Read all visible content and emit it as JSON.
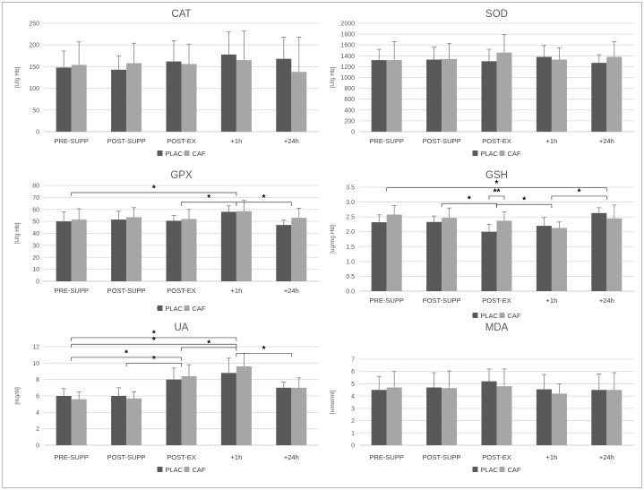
{
  "colors": {
    "PLAC": "#595959",
    "CAF": "#a6a6a6",
    "grid": "#d9d9d9",
    "axis": "#bfbfbf",
    "error": "#808080",
    "bracket": "#404040"
  },
  "legend_labels": [
    "PLAC",
    "CAF"
  ],
  "chart_data": [
    {
      "id": "cat",
      "type": "bar",
      "title": "CAT",
      "ylabel": "[U/g Hb]",
      "categories": [
        "PRE-SUPP",
        "POST-SUPP",
        "POST-EX",
        "+1h",
        "+24h"
      ],
      "ylim": [
        0,
        250
      ],
      "yticks": [
        0,
        50,
        100,
        150,
        200,
        250
      ],
      "series": [
        {
          "name": "PLAC",
          "values": [
            148,
            143,
            162,
            178,
            168
          ],
          "errors": [
            38,
            32,
            48,
            52,
            50
          ]
        },
        {
          "name": "CAF",
          "values": [
            154,
            158,
            156,
            165,
            138
          ],
          "errors": [
            53,
            46,
            46,
            67,
            80
          ]
        }
      ],
      "legend": "bottom-center",
      "grid": true,
      "annotations": []
    },
    {
      "id": "sod",
      "type": "bar",
      "title": "SOD",
      "ylabel": "[U/g Hb]",
      "categories": [
        "PRE-SUPP",
        "POST-SUPP",
        "POST-EX",
        "+1h",
        "+24h"
      ],
      "ylim": [
        0,
        2000
      ],
      "yticks": [
        0,
        200,
        400,
        600,
        800,
        1000,
        1200,
        1400,
        1600,
        1800,
        2000
      ],
      "series": [
        {
          "name": "PLAC",
          "values": [
            1320,
            1330,
            1300,
            1380,
            1270
          ],
          "errors": [
            200,
            230,
            220,
            210,
            150
          ]
        },
        {
          "name": "CAF",
          "values": [
            1320,
            1340,
            1460,
            1330,
            1380
          ],
          "errors": [
            340,
            290,
            330,
            220,
            280
          ]
        }
      ],
      "legend": "bottom-center",
      "grid": true,
      "annotations": []
    },
    {
      "id": "gpx",
      "type": "bar",
      "title": "GPX",
      "ylabel": "[U/g Hb]",
      "categories": [
        "PRE-SUPP",
        "POST-SUPP",
        "POST-EX",
        "+1h",
        "+24h"
      ],
      "ylim": [
        0,
        80
      ],
      "yticks": [
        0,
        10,
        20,
        30,
        40,
        50,
        60,
        70,
        80
      ],
      "series": [
        {
          "name": "PLAC",
          "values": [
            50,
            51.5,
            50.5,
            58,
            47
          ],
          "errors": [
            8,
            7,
            4.5,
            5,
            4
          ]
        },
        {
          "name": "CAF",
          "values": [
            51.5,
            53.5,
            52,
            58.5,
            53
          ],
          "errors": [
            9,
            8,
            8,
            9,
            8
          ]
        }
      ],
      "legend": "bottom-center",
      "grid": true,
      "annotations": [
        {
          "from": 0,
          "to": 3,
          "y": 74,
          "label": "*"
        },
        {
          "from": 2,
          "to": 3,
          "y": 66,
          "label": "*"
        },
        {
          "from": 3,
          "to": 4,
          "y": 66,
          "label": "*"
        }
      ]
    },
    {
      "id": "gsh",
      "type": "bar",
      "title": "GSH",
      "ylabel": "[ug/mg Hb]",
      "categories": [
        "PRE-SUPP",
        "POST-SUPP",
        "POST-EX",
        "+1h",
        "+24h"
      ],
      "ylim": [
        0,
        3.5
      ],
      "yticks": [
        0,
        0.5,
        1.0,
        1.5,
        2.0,
        2.5,
        3.0,
        3.5
      ],
      "tick_labels": [
        "0.0",
        "0.5",
        "1.0",
        "1.5",
        "2.0",
        "2.5",
        "3.0",
        "3.5"
      ],
      "series": [
        {
          "name": "PLAC",
          "values": [
            2.32,
            2.33,
            2.0,
            2.2,
            2.63
          ],
          "errors": [
            0.25,
            0.2,
            0.25,
            0.28,
            0.18
          ]
        },
        {
          "name": "CAF",
          "values": [
            2.58,
            2.47,
            2.37,
            2.13,
            2.45
          ],
          "errors": [
            0.3,
            0.33,
            0.3,
            0.2,
            0.45
          ]
        }
      ],
      "legend": "bottom-center",
      "grid": true,
      "annotations": [
        {
          "from": 0,
          "to": 4,
          "y": 3.48,
          "label": "*"
        },
        {
          "from": 1,
          "to": 2,
          "y": 2.95,
          "label": "*"
        },
        {
          "from": 2,
          "to": 2,
          "y": 3.2,
          "label": "**"
        },
        {
          "from": 2,
          "to": 3,
          "y": 2.92,
          "label": "*"
        },
        {
          "from": 3,
          "to": 4,
          "y": 3.2,
          "label": "*"
        }
      ]
    },
    {
      "id": "ua",
      "type": "bar",
      "title": "UA",
      "ylabel": "[mg/dl]",
      "categories": [
        "PRE-SUPP",
        "POST-SUPP",
        "POST-EX",
        "+1h",
        "+24h"
      ],
      "ylim": [
        0,
        12
      ],
      "yticks": [
        0,
        2,
        4,
        6,
        8,
        10,
        12
      ],
      "series": [
        {
          "name": "PLAC",
          "values": [
            6.0,
            6.0,
            8.0,
            8.8,
            7.0
          ],
          "errors": [
            0.9,
            1.0,
            1.4,
            1.8,
            0.7
          ]
        },
        {
          "name": "CAF",
          "values": [
            5.6,
            5.7,
            8.4,
            9.6,
            7.0
          ],
          "errors": [
            0.9,
            0.8,
            1.4,
            1.6,
            1.2
          ]
        }
      ],
      "legend": "bottom-center",
      "grid": true,
      "annotations": [
        {
          "from": 0,
          "to": 3,
          "y": 13.1,
          "label": "*"
        },
        {
          "from": 0,
          "to": 3,
          "y": 12.3,
          "label": "*"
        },
        {
          "from": 0,
          "to": 2,
          "y": 10.7,
          "label": "*"
        },
        {
          "from": 1,
          "to": 2,
          "y": 10.0,
          "label": "*"
        },
        {
          "from": 2,
          "to": 3,
          "y": 11.9,
          "label": "*"
        },
        {
          "from": 3,
          "to": 4,
          "y": 11.2,
          "label": "*"
        }
      ]
    },
    {
      "id": "mda",
      "type": "bar",
      "title": "MDA",
      "ylabel": "[umol/ml]",
      "categories": [
        "PRE-SUPP",
        "POST-SUPP",
        "POST-EX",
        "+1h",
        "+24h"
      ],
      "ylim": [
        0,
        7
      ],
      "yticks": [
        0,
        1,
        2,
        3,
        4,
        5,
        6,
        7
      ],
      "series": [
        {
          "name": "PLAC",
          "values": [
            4.5,
            4.7,
            5.2,
            4.55,
            4.5
          ],
          "errors": [
            1.1,
            1.2,
            1.0,
            1.2,
            1.3
          ]
        },
        {
          "name": "CAF",
          "values": [
            4.7,
            4.65,
            4.8,
            4.2,
            4.5
          ],
          "errors": [
            1.3,
            1.4,
            1.4,
            0.8,
            1.4
          ]
        }
      ],
      "legend": "bottom-center",
      "grid": true,
      "annotations": []
    }
  ]
}
